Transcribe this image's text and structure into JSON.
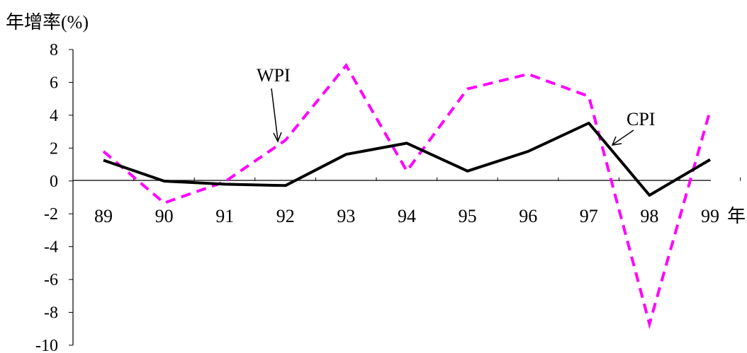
{
  "chart_data": {
    "type": "line",
    "ylabel": "年增率(%)",
    "x_unit": "年",
    "categories": [
      "89",
      "90",
      "91",
      "92",
      "93",
      "94",
      "95",
      "96",
      "97",
      "98",
      "99"
    ],
    "ylim": [
      -10,
      8
    ],
    "yticks": [
      8,
      6,
      4,
      2,
      0,
      -2,
      -4,
      -6,
      -8,
      -10
    ],
    "grid": false,
    "series": [
      {
        "name": "CPI",
        "values": [
          1.26,
          -0.01,
          -0.2,
          -0.28,
          1.62,
          2.3,
          0.6,
          1.8,
          3.52,
          -0.87,
          1.3
        ],
        "color": "#000000",
        "style": "solid"
      },
      {
        "name": "WPI",
        "values": [
          1.8,
          -1.34,
          -0.05,
          2.48,
          7.03,
          0.6,
          5.6,
          6.5,
          5.15,
          -8.7,
          4.3
        ],
        "color": "#ff00ff",
        "style": "dashed"
      }
    ]
  }
}
